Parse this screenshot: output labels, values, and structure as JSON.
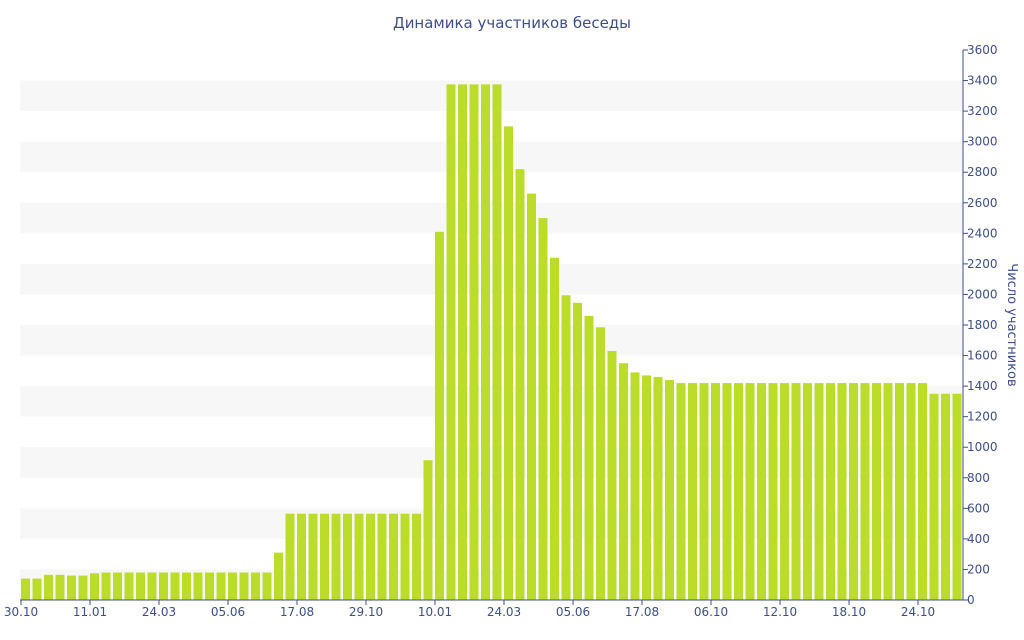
{
  "chart_data": {
    "type": "bar",
    "title": "Динамика участников беседы",
    "ylabel": "Число участников",
    "xlabel": "",
    "ylim": [
      0,
      3600
    ],
    "y_axis_side": "right",
    "y_ticks": [
      0,
      200,
      400,
      600,
      800,
      1000,
      1200,
      1400,
      1600,
      1800,
      2000,
      2200,
      2400,
      2600,
      2800,
      3000,
      3200,
      3400,
      3600
    ],
    "x_tick_labels": [
      {
        "index": 0,
        "label": "30.10"
      },
      {
        "index": 6,
        "label": "11.01"
      },
      {
        "index": 12,
        "label": "24.03"
      },
      {
        "index": 18,
        "label": "05.06"
      },
      {
        "index": 24,
        "label": "17.08"
      },
      {
        "index": 30,
        "label": "29.10"
      },
      {
        "index": 36,
        "label": "10.01"
      },
      {
        "index": 42,
        "label": "24.03"
      },
      {
        "index": 48,
        "label": "05.06"
      },
      {
        "index": 54,
        "label": "17.08"
      },
      {
        "index": 60,
        "label": "06.10"
      },
      {
        "index": 66,
        "label": "12.10"
      },
      {
        "index": 72,
        "label": "18.10"
      },
      {
        "index": 78,
        "label": "24.10"
      }
    ],
    "grid": "alternating horizontal bands",
    "bar_color": "#bcdc2a",
    "band_color": "#f7f7f7",
    "text_color": "#3d4f8c",
    "values": [
      140,
      140,
      165,
      165,
      160,
      160,
      175,
      180,
      180,
      180,
      180,
      180,
      180,
      180,
      180,
      180,
      180,
      180,
      180,
      180,
      180,
      180,
      310,
      565,
      565,
      565,
      565,
      565,
      565,
      565,
      565,
      565,
      565,
      565,
      565,
      915,
      2410,
      3375,
      3375,
      3375,
      3375,
      3375,
      3100,
      2820,
      2660,
      2500,
      2240,
      1995,
      1945,
      1860,
      1785,
      1630,
      1550,
      1490,
      1470,
      1460,
      1440,
      1420,
      1420,
      1420,
      1420,
      1420,
      1420,
      1420,
      1420,
      1420,
      1420,
      1420,
      1420,
      1420,
      1420,
      1420,
      1420,
      1420,
      1420,
      1420,
      1420,
      1420,
      1420,
      1350,
      1350,
      1350
    ]
  }
}
